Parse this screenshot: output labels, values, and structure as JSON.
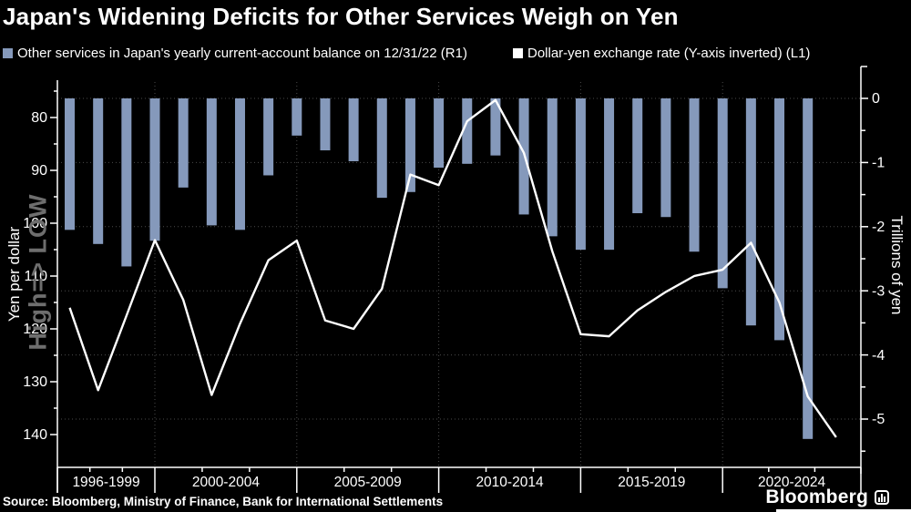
{
  "title": "Japan's Widening Deficits for Other Services Weigh on Yen",
  "legend": {
    "items": [
      {
        "label": "Other services in Japan's yearly current-account balance on 12/31/22 (R1)",
        "color": "#8599bb"
      },
      {
        "label": "Dollar-yen exchange rate (Y-axis inverted) (L1)",
        "color": "#ffffff"
      }
    ]
  },
  "watermark": "High=> LOW",
  "footer": {
    "source": "Source: Bloomberg, Ministry of Finance, Bank for International Settlements",
    "brand": "Bloomberg"
  },
  "colors": {
    "background": "#000000",
    "bar": "#8599bb",
    "line": "#ffffff",
    "grid": "#4a4a4a",
    "axis": "#ffffff",
    "watermark": "#6e6e6e"
  },
  "chart_data": {
    "type": "bar+line",
    "title": "Japan's Widening Deficits for Other Services Weigh on Yen",
    "left_axis": {
      "label": "Yen per dollar",
      "inverted": true,
      "ticks": [
        80,
        90,
        100,
        110,
        120,
        130,
        140
      ],
      "minor_ticks": [
        75,
        85,
        95,
        105,
        115,
        125,
        135
      ],
      "range": [
        74,
        142
      ]
    },
    "right_axis": {
      "label": "Trillions of yen",
      "ticks": [
        0,
        -1,
        -2,
        -3,
        -4,
        -5
      ],
      "minor_ticks": [
        -0.5,
        -1.5,
        -2.5,
        -3.5,
        -4.5,
        -5.5
      ],
      "range": [
        0.5,
        -5.8
      ]
    },
    "x_axis": {
      "group_labels": [
        "1996-1999",
        "2000-2004",
        "2005-2009",
        "2010-2014",
        "2015-2019",
        "2020-2024"
      ],
      "separator_years": [
        1999,
        2004,
        2009,
        2014,
        2019
      ],
      "gridline_years": [
        1999,
        2004,
        2009,
        2014,
        2019
      ],
      "range_years": [
        1996,
        2024
      ]
    },
    "series": [
      {
        "name": "Other services in Japan's yearly current-account balance on 12/31/22 (R1)",
        "type": "bar",
        "axis": "right",
        "unit": "trillions of yen",
        "color": "#8599bb",
        "years": [
          1996,
          1997,
          1998,
          1999,
          2000,
          2001,
          2002,
          2003,
          2004,
          2005,
          2006,
          2007,
          2008,
          2009,
          2010,
          2011,
          2012,
          2013,
          2014,
          2015,
          2016,
          2017,
          2018,
          2019,
          2020,
          2021,
          2022
        ],
        "values": [
          -2.05,
          -2.27,
          -2.62,
          -2.22,
          -1.39,
          -1.98,
          -2.05,
          -1.2,
          -0.58,
          -0.81,
          -0.98,
          -1.55,
          -1.46,
          -1.08,
          -1.02,
          -0.89,
          -1.81,
          -2.15,
          -2.36,
          -2.36,
          -1.79,
          -1.85,
          -2.39,
          -2.96,
          -3.54,
          -3.77,
          -5.31
        ]
      },
      {
        "name": "Dollar-yen exchange rate (Y-axis inverted) (L1)",
        "type": "line",
        "axis": "left",
        "unit": "yen per dollar",
        "color": "#ffffff",
        "years": [
          1996,
          1997,
          1998,
          1999,
          2000,
          2001,
          2002,
          2003,
          2004,
          2005,
          2006,
          2007,
          2008,
          2009,
          2010,
          2011,
          2012,
          2013,
          2014,
          2015,
          2016,
          2017,
          2018,
          2019,
          2020,
          2021,
          2022,
          2023
        ],
        "values": [
          116,
          131.6,
          117.5,
          103.2,
          114.5,
          132.5,
          119,
          107,
          103.3,
          118.4,
          120,
          112.4,
          90.8,
          92.8,
          80.7,
          76.7,
          86.7,
          105.3,
          121,
          121.4,
          116.5,
          113,
          110,
          108.8,
          103.7,
          115,
          132.8,
          140.5
        ]
      }
    ]
  }
}
